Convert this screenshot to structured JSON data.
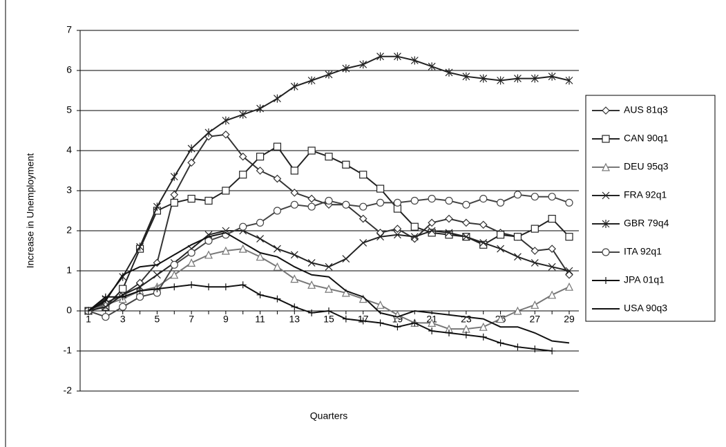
{
  "chart_data": {
    "type": "line",
    "x_label": "Quarters",
    "y_label": "Increase in Unemployment",
    "categories": [
      "1",
      null,
      "3",
      null,
      "5",
      null,
      "7",
      null,
      "9",
      null,
      "11",
      null,
      "13",
      null,
      "15",
      null,
      "17",
      null,
      "19",
      null,
      "21",
      null,
      "23",
      null,
      "25",
      null,
      "27",
      null,
      "29"
    ],
    "ylim": [
      -2,
      7
    ],
    "yticks": [
      -2,
      -1,
      0,
      1,
      2,
      3,
      4,
      5,
      6,
      7
    ],
    "grid": true,
    "legend": "right",
    "series": [
      {
        "name": "AUS 81q3",
        "color": "#333333",
        "marker": "diamond",
        "values": [
          0,
          0.2,
          0.4,
          0.7,
          1.2,
          2.9,
          3.7,
          4.35,
          4.4,
          3.85,
          3.5,
          3.3,
          2.95,
          2.8,
          2.65,
          2.65,
          2.3,
          1.95,
          2.05,
          1.8,
          2.2,
          2.3,
          2.2,
          2.15,
          1.95,
          1.85,
          1.5,
          1.55,
          0.9
        ]
      },
      {
        "name": "CAN 90q1",
        "color": "#222222",
        "marker": "square",
        "values": [
          0,
          0.1,
          0.55,
          1.55,
          2.5,
          2.7,
          2.8,
          2.75,
          3.0,
          3.4,
          3.85,
          4.1,
          3.5,
          4.0,
          3.85,
          3.65,
          3.4,
          3.05,
          2.55,
          2.1,
          1.95,
          1.9,
          1.85,
          1.65,
          1.9,
          1.85,
          2.05,
          2.3,
          1.85
        ]
      },
      {
        "name": "DEU 95q3",
        "color": "#777777",
        "marker": "triangle",
        "values": [
          0,
          0.15,
          0.3,
          0.5,
          0.6,
          0.9,
          1.2,
          1.4,
          1.5,
          1.55,
          1.35,
          1.1,
          0.8,
          0.65,
          0.55,
          0.45,
          0.3,
          0.15,
          -0.1,
          -0.3,
          -0.3,
          -0.45,
          -0.45,
          -0.4,
          -0.2,
          0.0,
          0.15,
          0.4,
          0.6
        ]
      },
      {
        "name": "FRA 92q1",
        "color": "#222222",
        "marker": "x",
        "values": [
          0,
          0.1,
          0.4,
          0.6,
          0.9,
          1.2,
          1.55,
          1.9,
          2.0,
          2.0,
          1.8,
          1.55,
          1.4,
          1.2,
          1.1,
          1.3,
          1.7,
          1.85,
          1.9,
          1.85,
          2.0,
          1.95,
          1.85,
          1.7,
          1.55,
          1.35,
          1.2,
          1.1,
          1.0
        ]
      },
      {
        "name": "GBR 79q4",
        "color": "#222222",
        "marker": "star",
        "values": [
          0,
          0.3,
          0.85,
          1.6,
          2.6,
          3.35,
          4.05,
          4.45,
          4.75,
          4.9,
          5.05,
          5.3,
          5.6,
          5.75,
          5.9,
          6.05,
          6.15,
          6.35,
          6.35,
          6.25,
          6.1,
          5.95,
          5.85,
          5.8,
          5.75,
          5.8,
          5.8,
          5.85,
          5.75
        ]
      },
      {
        "name": "ITA 92q1",
        "color": "#444444",
        "marker": "circle",
        "values": [
          0,
          -0.15,
          0.1,
          0.35,
          0.45,
          1.15,
          1.45,
          1.75,
          1.9,
          2.1,
          2.2,
          2.5,
          2.65,
          2.6,
          2.75,
          2.65,
          2.6,
          2.7,
          2.7,
          2.75,
          2.8,
          2.75,
          2.65,
          2.8,
          2.7,
          2.9,
          2.85,
          2.85,
          2.7
        ]
      },
      {
        "name": "JPA 01q1",
        "color": "#111111",
        "marker": "plus",
        "values": [
          0,
          0.35,
          0.35,
          0.5,
          0.55,
          0.6,
          0.65,
          0.6,
          0.6,
          0.65,
          0.4,
          0.3,
          0.1,
          -0.05,
          0.0,
          -0.2,
          -0.25,
          -0.3,
          -0.4,
          -0.3,
          -0.5,
          -0.55,
          -0.6,
          -0.65,
          -0.8,
          -0.9,
          -0.95,
          -1.0,
          null
        ]
      },
      {
        "name": "USA 90q3",
        "color": "#111111",
        "marker": "none",
        "values": [
          0,
          0.25,
          0.9,
          1.1,
          1.15,
          1.4,
          1.65,
          1.85,
          1.95,
          1.7,
          1.45,
          1.35,
          1.1,
          0.9,
          0.85,
          0.5,
          0.35,
          -0.05,
          -0.15,
          0.0,
          -0.05,
          -0.1,
          -0.15,
          -0.2,
          -0.4,
          -0.4,
          -0.55,
          -0.75,
          -0.8
        ]
      }
    ]
  }
}
